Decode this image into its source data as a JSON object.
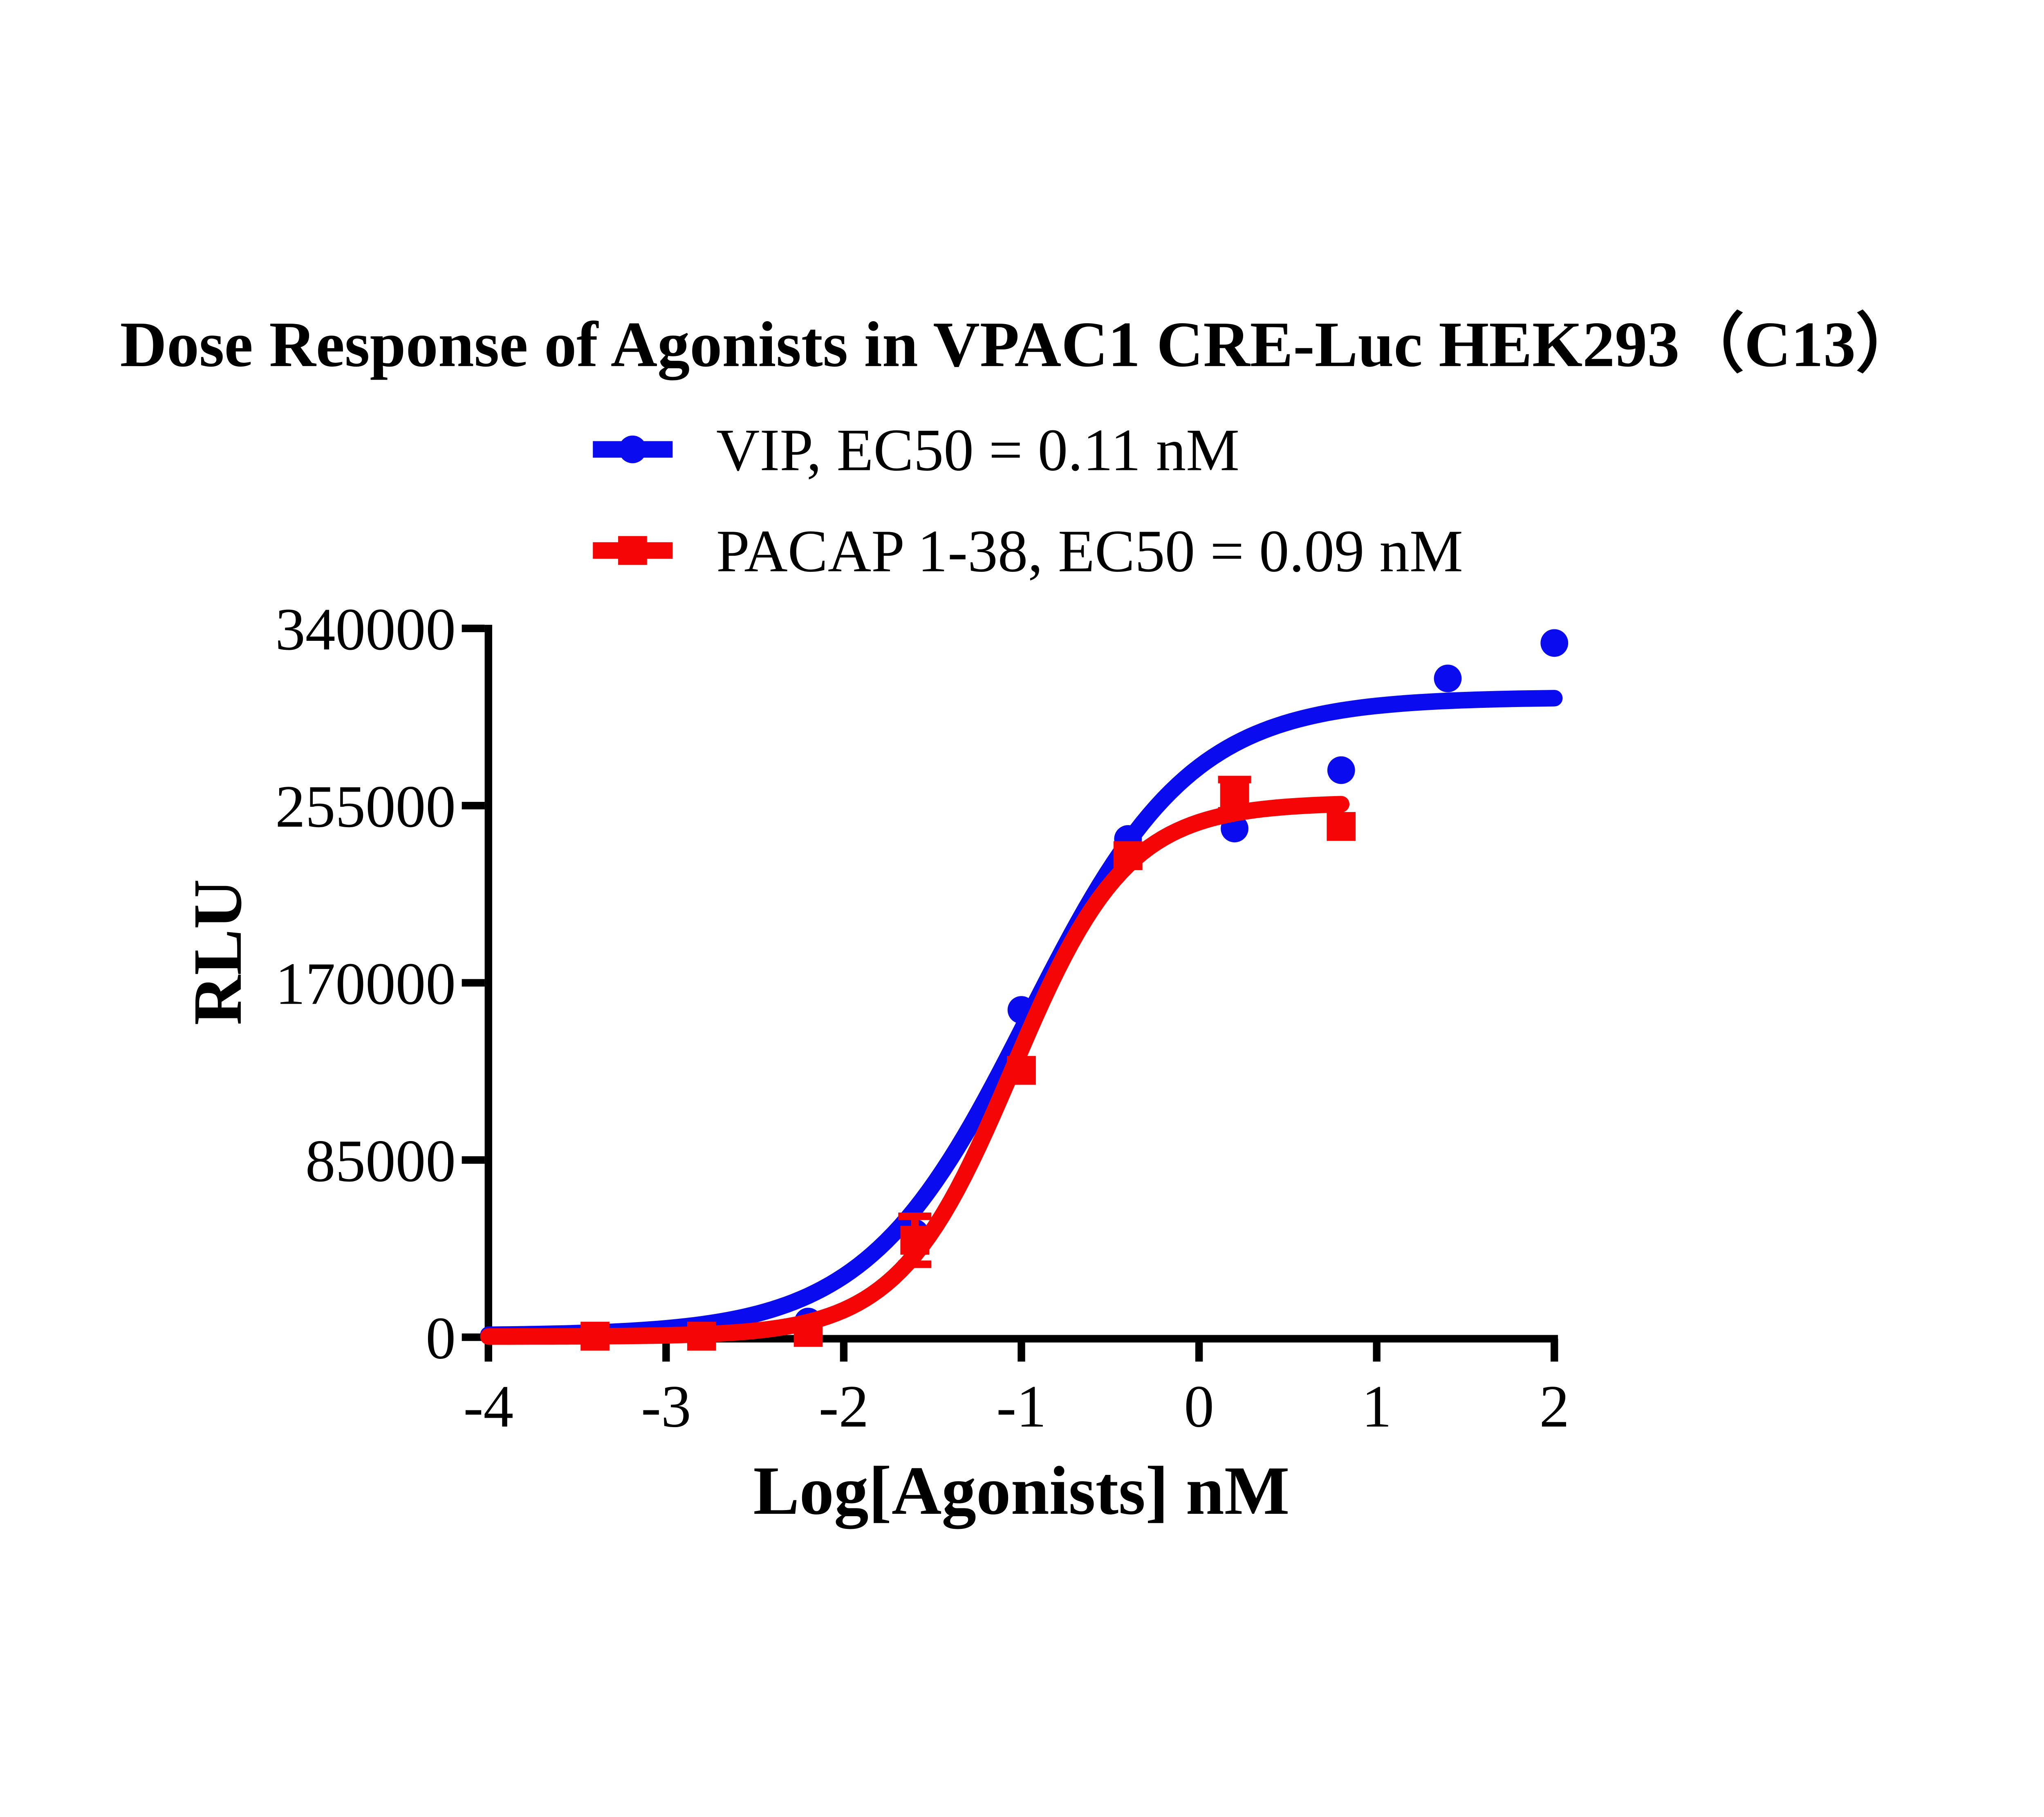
{
  "chart_data": {
    "type": "scatter",
    "title": "Dose Response of Agonists in VPAC1 CRE-Luc HEK293（C13）",
    "xlabel": "Log[Agonists] nM",
    "ylabel": "RLU",
    "x_axis": {
      "ticks": [
        -4,
        -3,
        -2,
        -1,
        0,
        1,
        2
      ],
      "range": [
        -4,
        2
      ],
      "grid": false
    },
    "y_axis": {
      "ticks": [
        0,
        85000,
        170000,
        255000,
        340000
      ],
      "range": [
        0,
        340000
      ],
      "grid": false
    },
    "legend_position": "top-center",
    "series": [
      {
        "name": "VIP",
        "legend_label": "VIP, EC50 = 0.11 nM",
        "ec50_nM": 0.11,
        "marker": "circle",
        "color": "#0b0bf0",
        "x": [
          -2.8,
          -2.2,
          -1.6,
          -1.0,
          -0.4,
          0.2,
          0.8,
          1.4,
          2.0
        ],
        "y": [
          2000,
          7500,
          50000,
          157000,
          239000,
          244000,
          272000,
          316000,
          333000
        ],
        "err": [
          0,
          0,
          0,
          0,
          0,
          0,
          0,
          0,
          0
        ],
        "fit_curve": {
          "model": "4PL",
          "bottom": 800,
          "top": 307000,
          "logEC50": -0.96,
          "hill": 0.95,
          "x_start": -4.0,
          "x_end": 2.02
        }
      },
      {
        "name": "PACAP 1-38",
        "legend_label": "PACAP 1-38, EC50 = 0.09 nM",
        "ec50_nM": 0.09,
        "marker": "square",
        "color": "#f50505",
        "x": [
          -3.4,
          -2.8,
          -2.2,
          -1.6,
          -1.0,
          -0.4,
          0.2,
          0.8
        ],
        "y": [
          500,
          500,
          2300,
          46500,
          128000,
          231000,
          260000,
          245000
        ],
        "err": [
          0,
          0,
          0,
          11500,
          0,
          0,
          7500,
          0
        ],
        "fit_curve": {
          "model": "4PL",
          "bottom": 300,
          "top": 256500,
          "logEC50": -1.05,
          "hill": 1.35,
          "x_start": -4.0,
          "x_end": 0.82
        }
      }
    ]
  }
}
